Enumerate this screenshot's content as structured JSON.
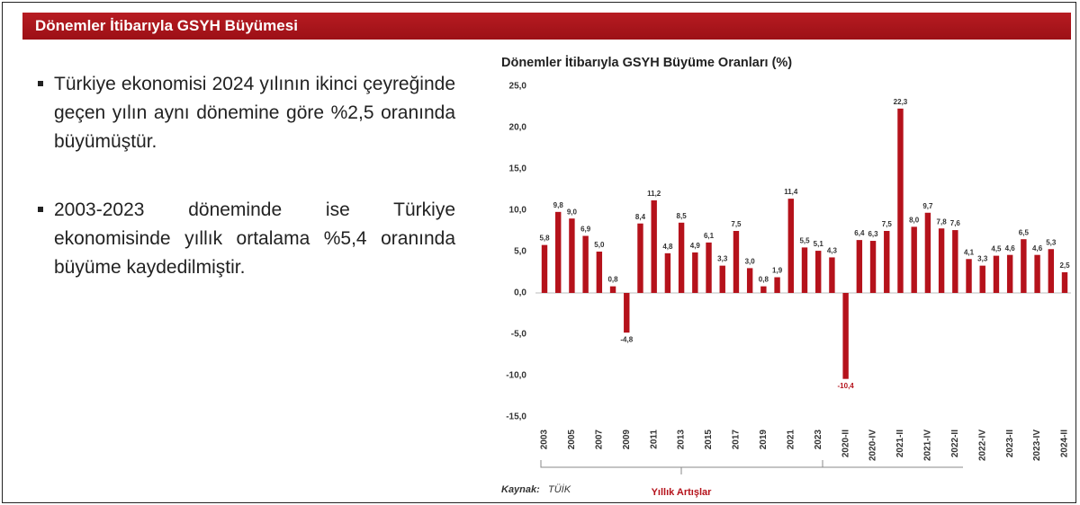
{
  "header": {
    "title": "Dönemler İtibarıyla GSYH Büyümesi"
  },
  "bullets": [
    "Türkiye ekonomisi 2024 yılının ikinci çeyreğinde geçen yılın aynı dönemine göre %2,5 oranında büyümüştür.",
    "2003-2023 döneminde ise Türkiye ekonomisinde yıllık ortalama %5,4 oranında büyüme kaydedilmiştir."
  ],
  "chart_data": {
    "type": "bar",
    "title": "Dönemler İtibarıyla GSYH Büyüme Oranları (%)",
    "categories": [
      "2003",
      null,
      "2005",
      null,
      "2007",
      null,
      "2009",
      null,
      "2011",
      null,
      "2013",
      null,
      "2015",
      null,
      "2017",
      null,
      "2019",
      null,
      "2021",
      null,
      "2023",
      null,
      "2020-II",
      null,
      "2020-IV",
      null,
      "2021-II",
      null,
      "2021-IV",
      null,
      "2022-II",
      null,
      "2022-IV",
      null,
      "2023-II",
      null,
      "2023-IV",
      null,
      "2024-II"
    ],
    "values": [
      5.8,
      9.8,
      9.0,
      6.9,
      5.0,
      0.8,
      -4.8,
      8.4,
      11.2,
      4.8,
      8.5,
      4.9,
      6.1,
      3.3,
      7.5,
      3.0,
      0.8,
      1.9,
      11.4,
      5.5,
      5.1,
      4.3,
      -10.4,
      6.4,
      6.3,
      7.5,
      22.3,
      8.0,
      9.7,
      7.8,
      7.6,
      4.1,
      3.3,
      4.5,
      4.6,
      6.5,
      4.6,
      5.3,
      2.5
    ],
    "value_labels": [
      "5,8",
      "9,8",
      "9,0",
      "6,9",
      "5,0",
      "0,8",
      "-4,8",
      "8,4",
      "11,2",
      "4,8",
      "8,5",
      "4,9",
      "6,1",
      "3,3",
      "7,5",
      "3,0",
      "0,8",
      "1,9",
      "11,4",
      "5,5",
      "5,1",
      "4,3",
      "-10,4",
      "6,4",
      "6,3",
      "7,5",
      "22,3",
      "8,0",
      "9,7",
      "7,8",
      "7,6",
      "4,1",
      "3,3",
      "4,5",
      "4,6",
      "6,5",
      "4,6",
      "5,3",
      "2,5"
    ],
    "color": "#b5121b",
    "ylim": [
      -15,
      25
    ],
    "yticks": [
      {
        "value": -15,
        "label": "-15,0"
      },
      {
        "value": -10,
        "label": "-10,0"
      },
      {
        "value": -5,
        "label": "-5,0"
      },
      {
        "value": 0,
        "label": "0,0"
      },
      {
        "value": 5,
        "label": "5,0"
      },
      {
        "value": 10,
        "label": "10,0"
      },
      {
        "value": 15,
        "label": "15,0"
      },
      {
        "value": 20,
        "label": "20,0"
      },
      {
        "value": 25,
        "label": "25,0"
      }
    ],
    "grid": false,
    "annotation": "Yıllık Artışlar",
    "source_label": "Kaynak:",
    "source": "TÜİK"
  }
}
